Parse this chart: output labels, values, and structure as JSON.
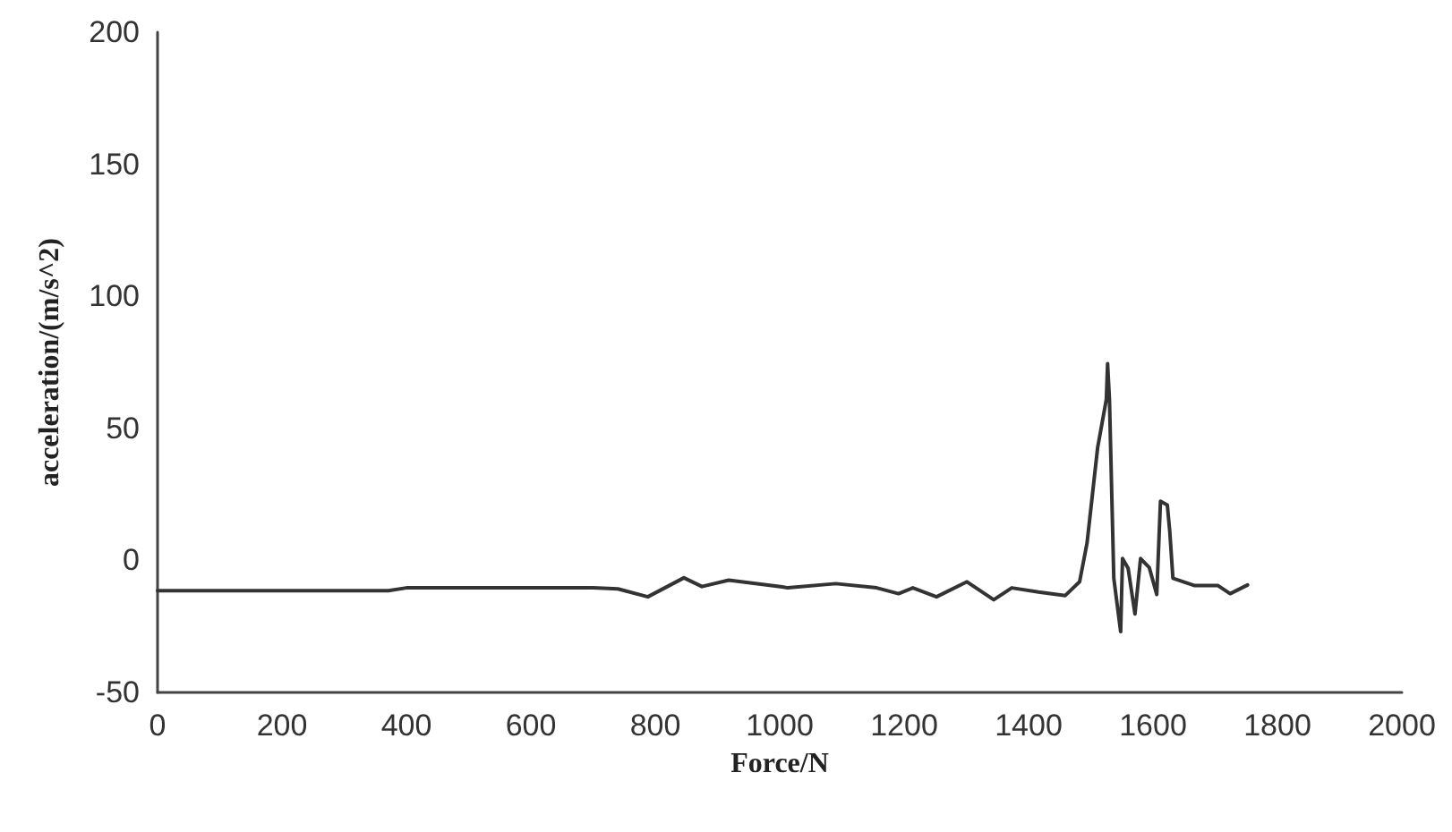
{
  "chart_data": {
    "type": "line",
    "xlabel": "Force/N",
    "ylabel": "acceleration/(m/s^2)",
    "x": [
      0,
      371,
      400,
      700,
      740,
      788,
      846,
      875,
      918,
      1004,
      1013,
      1090,
      1156,
      1191,
      1214,
      1252,
      1301,
      1344,
      1373,
      1416,
      1459,
      1482,
      1494,
      1511,
      1525,
      1527,
      1530,
      1537,
      1548,
      1551,
      1560,
      1571,
      1580,
      1594,
      1606,
      1612,
      1623,
      1627,
      1632,
      1666,
      1704,
      1724,
      1752
    ],
    "series": [
      {
        "color": "#333333",
        "values": [
          -11.5,
          -11.5,
          -10.4,
          -10.4,
          -10.8,
          -13.8,
          -6.6,
          -9.9,
          -7.5,
          -10,
          -10.4,
          -8.8,
          -10.4,
          -12.6,
          -10.4,
          -13.8,
          -8.1,
          -14.9,
          -10.4,
          -12,
          -13.3,
          -8.1,
          6.6,
          42.7,
          61,
          74.5,
          61,
          -6.8,
          -27,
          0.7,
          -3,
          -20.3,
          0.7,
          -2.7,
          -12.9,
          22.4,
          21,
          10.8,
          -6.8,
          -9.5,
          -9.5,
          -12.6,
          -9.3
        ]
      }
    ],
    "xlim": [
      0,
      2000
    ],
    "xticks": [
      0,
      200,
      400,
      600,
      800,
      1000,
      1200,
      1400,
      1600,
      1800,
      2000
    ],
    "ylim": [
      -50,
      200
    ],
    "yticks": [
      -50,
      0,
      50,
      100,
      150,
      200
    ],
    "grid": false,
    "marker": "none",
    "line_style": "solid"
  }
}
